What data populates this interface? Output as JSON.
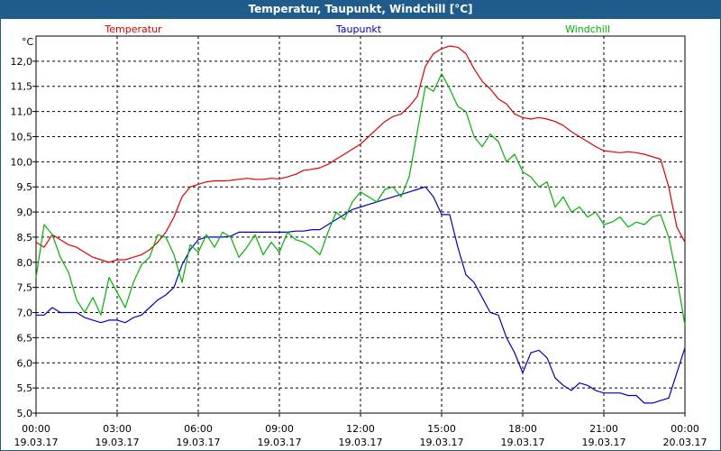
{
  "window": {
    "title": "Temperatur, Taupunkt, Windchill [°C]"
  },
  "chart_data": {
    "type": "line",
    "title": "Temperatur, Taupunkt, Windchill [°C]",
    "ylabel": "°C",
    "xlabel": "",
    "grid": true,
    "ylim": [
      5.0,
      12.5
    ],
    "xlim": [
      0,
      24
    ],
    "y_ticks": [
      "12,0",
      "11,5",
      "11,0",
      "10,5",
      "10,0",
      "9,5",
      "9,0",
      "8,5",
      "8,0",
      "7,5",
      "7,0",
      "6,5",
      "6,0",
      "5,5",
      "5,0"
    ],
    "y_tick_values": [
      12.0,
      11.5,
      11.0,
      10.5,
      10.0,
      9.5,
      9.0,
      8.5,
      8.0,
      7.5,
      7.0,
      6.5,
      6.0,
      5.5,
      5.0
    ],
    "x_ticks": [
      {
        "time": "00:00",
        "date": "19.03.17",
        "hour": 0
      },
      {
        "time": "03:00",
        "date": "19.03.17",
        "hour": 3
      },
      {
        "time": "06:00",
        "date": "19.03.17",
        "hour": 6
      },
      {
        "time": "09:00",
        "date": "19.03.17",
        "hour": 9
      },
      {
        "time": "12:00",
        "date": "19.03.17",
        "hour": 12
      },
      {
        "time": "15:00",
        "date": "19.03.17",
        "hour": 15
      },
      {
        "time": "18:00",
        "date": "19.03.17",
        "hour": 18
      },
      {
        "time": "21:00",
        "date": "19.03.17",
        "hour": 21
      },
      {
        "time": "00:00",
        "date": "20.03.17",
        "hour": 24
      }
    ],
    "series": [
      {
        "name": "Temperatur",
        "color": "#e00000",
        "x": [
          0,
          0.3,
          0.6,
          0.9,
          1.2,
          1.5,
          1.8,
          2.1,
          2.4,
          2.7,
          3.0,
          3.3,
          3.6,
          3.9,
          4.2,
          4.5,
          4.8,
          5.1,
          5.4,
          5.7,
          6.0,
          6.3,
          6.6,
          6.9,
          7.2,
          7.5,
          7.8,
          8.1,
          8.4,
          8.7,
          9.0,
          9.3,
          9.6,
          9.9,
          10.2,
          10.5,
          10.8,
          11.1,
          11.4,
          11.7,
          12.0,
          12.3,
          12.6,
          12.9,
          13.2,
          13.5,
          13.8,
          14.1,
          14.4,
          14.7,
          15.0,
          15.3,
          15.6,
          15.9,
          16.2,
          16.5,
          16.8,
          17.1,
          17.4,
          17.7,
          18.0,
          18.3,
          18.6,
          18.9,
          19.2,
          19.5,
          19.8,
          20.1,
          20.4,
          20.7,
          21.0,
          21.3,
          21.6,
          21.9,
          22.2,
          22.5,
          22.8,
          23.1,
          23.4,
          23.7,
          24.0
        ],
        "values": [
          8.4,
          8.3,
          8.55,
          8.45,
          8.35,
          8.3,
          8.2,
          8.1,
          8.05,
          8.0,
          8.05,
          8.05,
          8.1,
          8.15,
          8.25,
          8.4,
          8.6,
          8.9,
          9.3,
          9.5,
          9.55,
          9.6,
          9.62,
          9.62,
          9.63,
          9.65,
          9.67,
          9.65,
          9.65,
          9.67,
          9.66,
          9.7,
          9.75,
          9.83,
          9.85,
          9.88,
          9.95,
          10.05,
          10.15,
          10.25,
          10.35,
          10.5,
          10.65,
          10.8,
          10.9,
          10.95,
          11.1,
          11.3,
          11.9,
          12.15,
          12.25,
          12.3,
          12.28,
          12.15,
          11.85,
          11.6,
          11.45,
          11.25,
          11.15,
          10.95,
          10.88,
          10.85,
          10.88,
          10.85,
          10.8,
          10.72,
          10.6,
          10.5,
          10.4,
          10.3,
          10.22,
          10.2,
          10.18,
          10.2,
          10.18,
          10.15,
          10.1,
          10.05,
          9.5,
          8.7,
          8.4
        ]
      },
      {
        "name": "Taupunkt",
        "color": "#0000c8",
        "x": [
          0,
          0.3,
          0.6,
          0.9,
          1.2,
          1.5,
          1.8,
          2.1,
          2.4,
          2.7,
          3.0,
          3.3,
          3.6,
          3.9,
          4.2,
          4.5,
          4.8,
          5.1,
          5.4,
          5.7,
          6.0,
          6.3,
          6.6,
          6.9,
          7.2,
          7.5,
          7.8,
          8.1,
          8.4,
          8.7,
          9.0,
          9.3,
          9.6,
          9.9,
          10.2,
          10.5,
          10.8,
          11.1,
          11.4,
          11.7,
          12.0,
          12.3,
          12.6,
          12.9,
          13.2,
          13.5,
          13.8,
          14.1,
          14.4,
          14.7,
          15.0,
          15.3,
          15.6,
          15.9,
          16.2,
          16.5,
          16.8,
          17.1,
          17.4,
          17.7,
          18.0,
          18.3,
          18.6,
          18.9,
          19.2,
          19.5,
          19.8,
          20.1,
          20.4,
          20.7,
          21.0,
          21.3,
          21.6,
          21.9,
          22.2,
          22.5,
          22.8,
          23.1,
          23.4,
          23.7,
          24.0
        ],
        "values": [
          6.95,
          6.95,
          7.1,
          7.0,
          7.0,
          7.0,
          6.9,
          6.85,
          6.8,
          6.85,
          6.85,
          6.8,
          6.9,
          6.95,
          7.1,
          7.25,
          7.35,
          7.5,
          7.95,
          8.25,
          8.45,
          8.5,
          8.5,
          8.5,
          8.52,
          8.6,
          8.6,
          8.6,
          8.6,
          8.6,
          8.6,
          8.6,
          8.62,
          8.62,
          8.65,
          8.65,
          8.75,
          8.85,
          8.95,
          9.05,
          9.1,
          9.15,
          9.2,
          9.25,
          9.3,
          9.35,
          9.4,
          9.45,
          9.5,
          9.3,
          8.95,
          8.95,
          8.3,
          7.75,
          7.6,
          7.3,
          7.0,
          6.95,
          6.5,
          6.2,
          5.8,
          6.2,
          6.25,
          6.1,
          5.7,
          5.55,
          5.45,
          5.6,
          5.55,
          5.45,
          5.4,
          5.4,
          5.4,
          5.35,
          5.35,
          5.2,
          5.2,
          5.25,
          5.3,
          5.8,
          6.3
        ]
      },
      {
        "name": "Windchill",
        "color": "#00b400",
        "x": [
          0,
          0.3,
          0.6,
          0.9,
          1.2,
          1.5,
          1.8,
          2.1,
          2.4,
          2.7,
          3.0,
          3.3,
          3.6,
          3.9,
          4.2,
          4.5,
          4.8,
          5.1,
          5.4,
          5.7,
          6.0,
          6.3,
          6.6,
          6.9,
          7.2,
          7.5,
          7.8,
          8.1,
          8.4,
          8.7,
          9.0,
          9.3,
          9.6,
          9.9,
          10.2,
          10.5,
          10.8,
          11.1,
          11.4,
          11.7,
          12.0,
          12.3,
          12.6,
          12.9,
          13.2,
          13.5,
          13.8,
          14.1,
          14.4,
          14.7,
          15.0,
          15.3,
          15.6,
          15.9,
          16.2,
          16.5,
          16.8,
          17.1,
          17.4,
          17.7,
          18.0,
          18.3,
          18.6,
          18.9,
          19.2,
          19.5,
          19.8,
          20.1,
          20.4,
          20.7,
          21.0,
          21.3,
          21.6,
          21.9,
          22.2,
          22.5,
          22.8,
          23.1,
          23.4,
          23.7,
          24.0
        ],
        "values": [
          7.7,
          8.75,
          8.55,
          8.1,
          7.8,
          7.25,
          7.0,
          7.3,
          6.95,
          7.7,
          7.4,
          7.1,
          7.6,
          7.95,
          8.1,
          8.55,
          8.5,
          8.15,
          7.6,
          8.35,
          8.2,
          8.55,
          8.3,
          8.6,
          8.5,
          8.1,
          8.3,
          8.55,
          8.15,
          8.4,
          8.2,
          8.6,
          8.45,
          8.4,
          8.3,
          8.15,
          8.6,
          9.0,
          8.85,
          9.2,
          9.4,
          9.3,
          9.2,
          9.45,
          9.5,
          9.3,
          9.7,
          10.6,
          11.5,
          11.4,
          11.75,
          11.45,
          11.1,
          11.0,
          10.5,
          10.3,
          10.55,
          10.4,
          10.0,
          10.15,
          9.8,
          9.7,
          9.5,
          9.6,
          9.1,
          9.3,
          9.0,
          9.1,
          8.9,
          9.0,
          8.75,
          8.8,
          8.9,
          8.7,
          8.8,
          8.75,
          8.9,
          8.95,
          8.5,
          7.7,
          6.75
        ]
      }
    ]
  }
}
